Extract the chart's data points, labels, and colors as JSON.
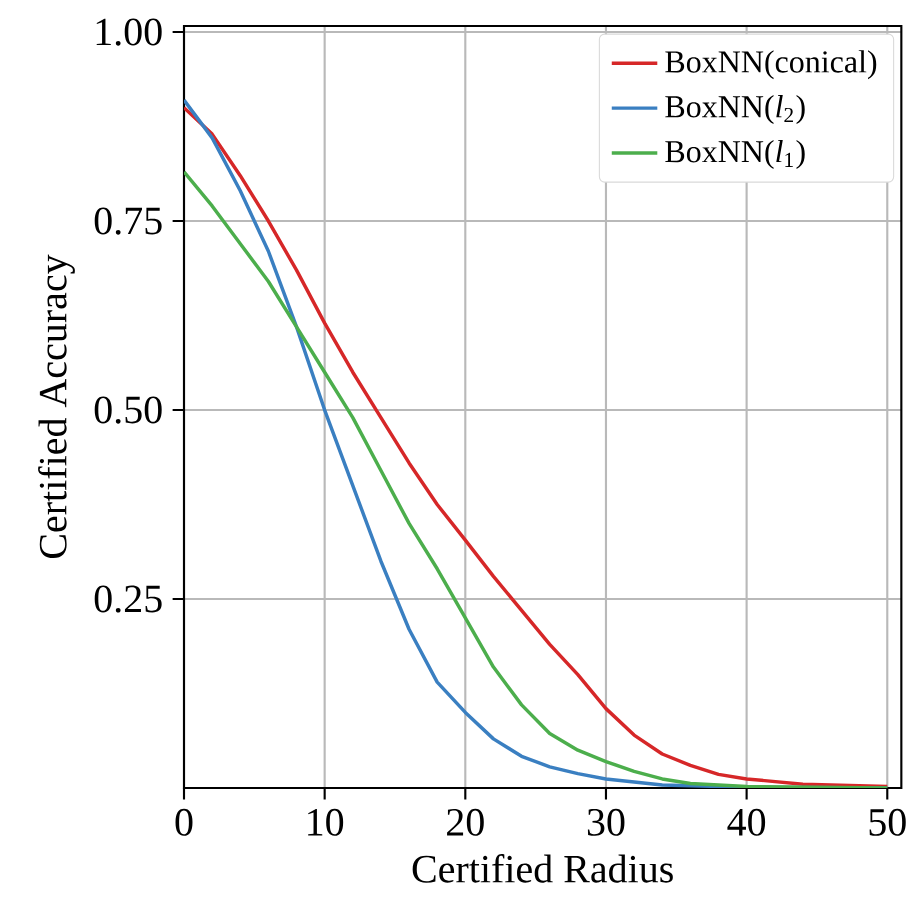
{
  "chart_data": {
    "type": "line",
    "xlabel": "Certified Radius",
    "ylabel": "Certified Accuracy",
    "xlim": [
      0,
      51
    ],
    "ylim": [
      0,
      1.008
    ],
    "xticks": [
      0,
      10,
      20,
      30,
      40,
      50
    ],
    "yticks": [
      0.25,
      {
        "value": 0.5,
        "label": "0.50"
      },
      0.75,
      {
        "value": 1.0,
        "label": "1.00"
      }
    ],
    "grid": true,
    "legend": "top right",
    "marker": "none",
    "line_style": "solid",
    "series": [
      {
        "name": "BoxNN(conical)",
        "color": "#d62728",
        "x": [
          0,
          2,
          4,
          6,
          8,
          10,
          12,
          14,
          16,
          18,
          20,
          22,
          24,
          26,
          28,
          30,
          32,
          34,
          36,
          38,
          40,
          44,
          50
        ],
        "values": [
          0.9,
          0.865,
          0.81,
          0.75,
          0.685,
          0.615,
          0.55,
          0.49,
          0.43,
          0.375,
          0.328,
          0.28,
          0.235,
          0.19,
          0.15,
          0.105,
          0.07,
          0.045,
          0.03,
          0.018,
          0.012,
          0.005,
          0.002
        ]
      },
      {
        "name": "BoxNN(*l*$_{2}$)",
        "color": "#3a7fc1",
        "x": [
          0,
          2,
          4,
          6,
          8,
          10,
          12,
          14,
          16,
          18,
          20,
          22,
          24,
          26,
          28,
          30,
          34,
          40,
          50
        ],
        "values": [
          0.91,
          0.86,
          0.79,
          0.71,
          0.61,
          0.5,
          0.4,
          0.3,
          0.21,
          0.14,
          0.1,
          0.065,
          0.042,
          0.028,
          0.019,
          0.012,
          0.004,
          0.001,
          0
        ]
      },
      {
        "name": "BoxNN(*l*$_{1}$)",
        "color": "#4cae4c",
        "x": [
          0,
          2,
          4,
          6,
          8,
          10,
          12,
          14,
          16,
          18,
          20,
          22,
          24,
          26,
          28,
          30,
          32,
          34,
          36,
          40,
          50
        ],
        "values": [
          0.815,
          0.77,
          0.72,
          0.67,
          0.61,
          0.55,
          0.49,
          0.42,
          0.35,
          0.29,
          0.225,
          0.16,
          0.11,
          0.072,
          0.05,
          0.035,
          0.022,
          0.012,
          0.006,
          0.002,
          0
        ]
      }
    ]
  }
}
